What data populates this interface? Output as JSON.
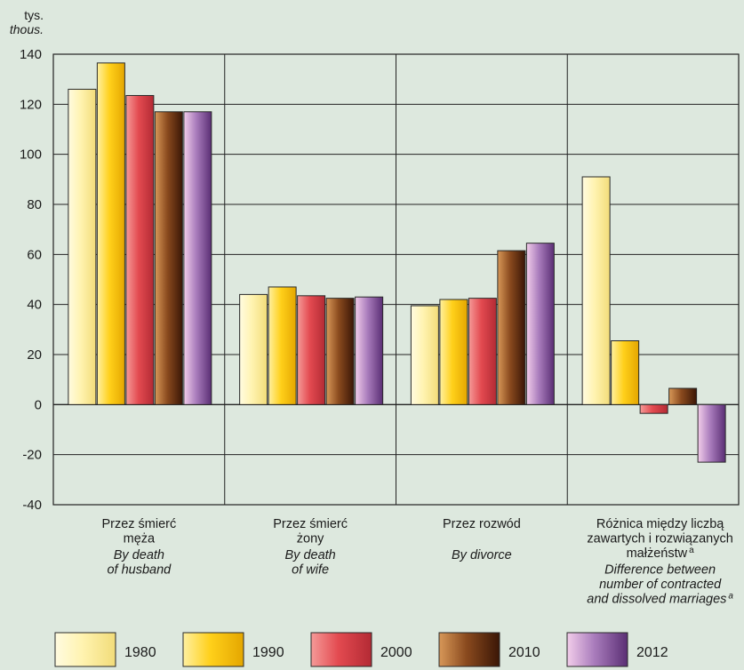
{
  "chart_data": {
    "type": "bar",
    "y_unit_pl": "tys.",
    "y_unit_en": "thous.",
    "ylim": [
      -40,
      140
    ],
    "yticks": [
      140,
      120,
      100,
      80,
      60,
      40,
      20,
      0,
      -20,
      -40
    ],
    "categories": [
      {
        "pl": [
          "Przez śmierć",
          "męża"
        ],
        "en": [
          "By death",
          "of husband"
        ]
      },
      {
        "pl": [
          "Przez śmierć",
          "żony"
        ],
        "en": [
          "By death",
          "of wife"
        ]
      },
      {
        "pl": [
          "Przez rozwód"
        ],
        "en": [
          "By divorce"
        ]
      },
      {
        "pl": [
          "Różnica między liczbą",
          "zawartych i rozwiązanych",
          "małżeństw"
        ],
        "pl_sup": "a",
        "en": [
          "Difference between",
          "number of contracted",
          "and dissolved marriages"
        ],
        "en_sup": "a"
      }
    ],
    "series": [
      {
        "name": "1980",
        "values": [
          126,
          44,
          39.5,
          91
        ]
      },
      {
        "name": "1990",
        "values": [
          136.5,
          47,
          42,
          25.5
        ]
      },
      {
        "name": "2000",
        "values": [
          123.5,
          43.5,
          42.5,
          -3.5
        ]
      },
      {
        "name": "2010",
        "values": [
          117,
          42.5,
          61.5,
          6.5
        ]
      },
      {
        "name": "2012",
        "values": [
          117,
          43,
          64.5,
          -23
        ]
      }
    ],
    "colors": {
      "1980": [
        "#fffbe0",
        "#fff3b0",
        "#f2dc79"
      ],
      "1990": [
        "#fff0a0",
        "#ffd01a",
        "#e4a600"
      ],
      "2000": [
        "#f59a98",
        "#e34a50",
        "#b32a34"
      ],
      "2010": [
        "#d89858",
        "#8a4a1e",
        "#3a1606"
      ],
      "2012": [
        "#f2cdea",
        "#a97cbc",
        "#5a2e74"
      ]
    },
    "legend_position": "bottom"
  }
}
